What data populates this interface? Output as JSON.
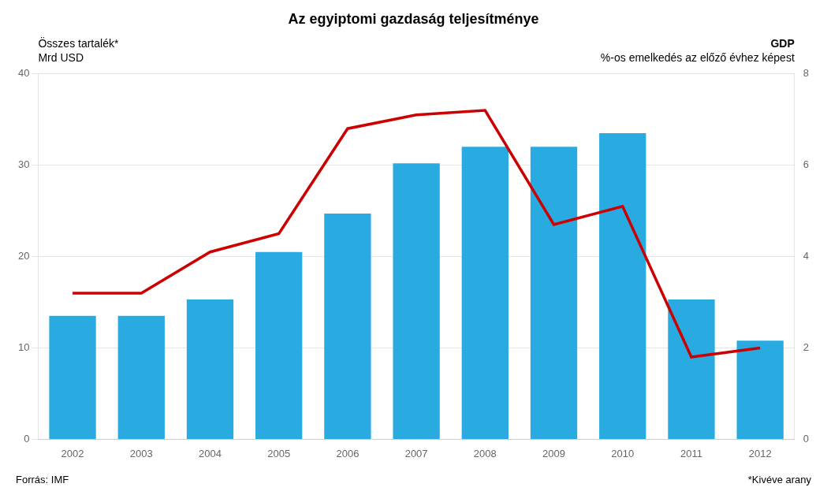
{
  "chart_data": {
    "type": "bar",
    "title": "Az egyiptomi gazdaság teljesítménye",
    "ylabel": [
      "Összes tartalék*",
      "Mrd USD"
    ],
    "y2label": [
      "GDP",
      "%-os emelkedés az előző évhez képest"
    ],
    "annotations": [
      "Forrás: IMF",
      "*Kivéve arany"
    ],
    "categories": [
      "2002",
      "2003",
      "2004",
      "2005",
      "2006",
      "2007",
      "2008",
      "2009",
      "2010",
      "2011",
      "2012"
    ],
    "series": [
      {
        "type": "bar",
        "color": "#29ABE2",
        "values": [
          13.5,
          13.5,
          15.3,
          20.5,
          24.7,
          30.2,
          32.0,
          32.0,
          33.5,
          15.3,
          10.8
        ]
      },
      {
        "type": "line",
        "color": "#CC0000",
        "axis": "y2",
        "values": [
          3.2,
          3.2,
          4.1,
          4.5,
          6.8,
          7.1,
          7.2,
          4.7,
          5.1,
          1.8,
          2.0
        ]
      }
    ],
    "ylim": [
      0,
      40
    ],
    "yticks": [
      0,
      10,
      20,
      30,
      40
    ],
    "y2lim": [
      0,
      8
    ],
    "y2ticks": [
      0,
      2,
      4,
      6,
      8
    ],
    "grid": true
  }
}
